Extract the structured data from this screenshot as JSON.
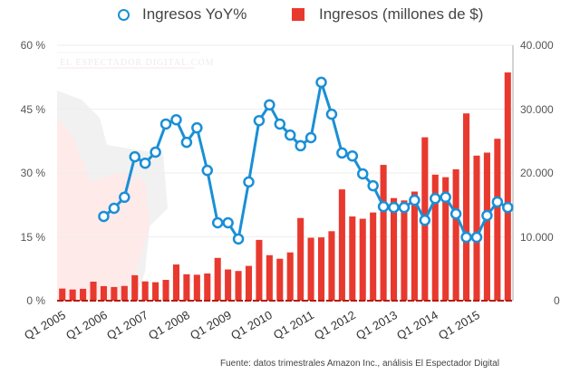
{
  "legend": {
    "yoy_label": "Ingresos YoY%",
    "revenue_label": "Ingresos (millones de $)"
  },
  "colors": {
    "line": "#1a8fd6",
    "bar": "#e8392f",
    "grid": "#eeeeee"
  },
  "watermark": {
    "text": "EL ESPECTADOR DIGITAL.COM"
  },
  "axes": {
    "left_ticks": [
      "60 %",
      "45 %",
      "30 %",
      "15 %",
      "0 %"
    ],
    "right_ticks": [
      "40.000",
      "30.000",
      "20.000",
      "10.000",
      "0"
    ],
    "x_ticks": [
      "Q1 2005",
      "Q1 2006",
      "Q1 2007",
      "Q1 2008",
      "Q1 2009",
      "Q1 2010",
      "Q1 2011",
      "Q1 2012",
      "Q1 2013",
      "Q1 2014",
      "Q1 2015"
    ]
  },
  "source": "Fuente: datos trimestrales Amazon Inc., análisis El Espectador Digital",
  "chart_data": {
    "type": "bar",
    "title": "",
    "xlabel": "",
    "ylabel": "Ingresos YoY% / Ingresos (millones de $)",
    "categories": [
      "Q1 2005",
      "Q2 2005",
      "Q3 2005",
      "Q4 2005",
      "Q1 2006",
      "Q2 2006",
      "Q3 2006",
      "Q4 2006",
      "Q1 2007",
      "Q2 2007",
      "Q3 2007",
      "Q4 2007",
      "Q1 2008",
      "Q2 2008",
      "Q3 2008",
      "Q4 2008",
      "Q1 2009",
      "Q2 2009",
      "Q3 2009",
      "Q4 2009",
      "Q1 2010",
      "Q2 2010",
      "Q3 2010",
      "Q4 2010",
      "Q1 2011",
      "Q2 2011",
      "Q3 2011",
      "Q4 2011",
      "Q1 2012",
      "Q2 2012",
      "Q3 2012",
      "Q4 2012",
      "Q1 2013",
      "Q2 2013",
      "Q3 2013",
      "Q4 2013",
      "Q1 2014",
      "Q2 2014",
      "Q3 2014",
      "Q4 2014",
      "Q1 2015",
      "Q2 2015",
      "Q3 2015",
      "Q4 2015"
    ],
    "series": [
      {
        "name": "Ingresos (millones de $)",
        "type": "bar",
        "axis": "right",
        "values": [
          1900,
          1750,
          1860,
          2980,
          2280,
          2140,
          2310,
          3990,
          3020,
          2890,
          3260,
          5670,
          4140,
          4060,
          4260,
          6700,
          4890,
          4650,
          5450,
          9520,
          7130,
          6570,
          7560,
          12950,
          9860,
          9910,
          10880,
          17430,
          13190,
          12830,
          13810,
          21270,
          16070,
          15700,
          17090,
          25590,
          19740,
          19340,
          20580,
          29330,
          22720,
          23190,
          25360,
          35750
        ]
      },
      {
        "name": "Ingresos YoY%",
        "type": "line",
        "axis": "left",
        "values": [
          null,
          null,
          null,
          null,
          19.8,
          21.7,
          24.3,
          33.8,
          32.3,
          34.9,
          41.5,
          42.5,
          37.2,
          40.6,
          30.6,
          18.3,
          18.3,
          14.5,
          27.9,
          42.3,
          46.0,
          41.5,
          38.9,
          36.4,
          38.3,
          51.3,
          43.8,
          34.7,
          34.0,
          29.8,
          27.0,
          22.1,
          21.9,
          21.9,
          23.6,
          18.9,
          24.0,
          24.3,
          20.4,
          14.9,
          14.9,
          20.0,
          23.2,
          21.9
        ]
      }
    ],
    "left_axis": {
      "label": "%",
      "ylim": [
        0,
        60
      ],
      "ticks": [
        0,
        15,
        30,
        45,
        60
      ]
    },
    "right_axis": {
      "label": "millones de $",
      "ylim": [
        0,
        40000
      ],
      "ticks": [
        0,
        10000,
        20000,
        30000,
        40000
      ]
    },
    "grid": true,
    "legend_position": "top"
  }
}
